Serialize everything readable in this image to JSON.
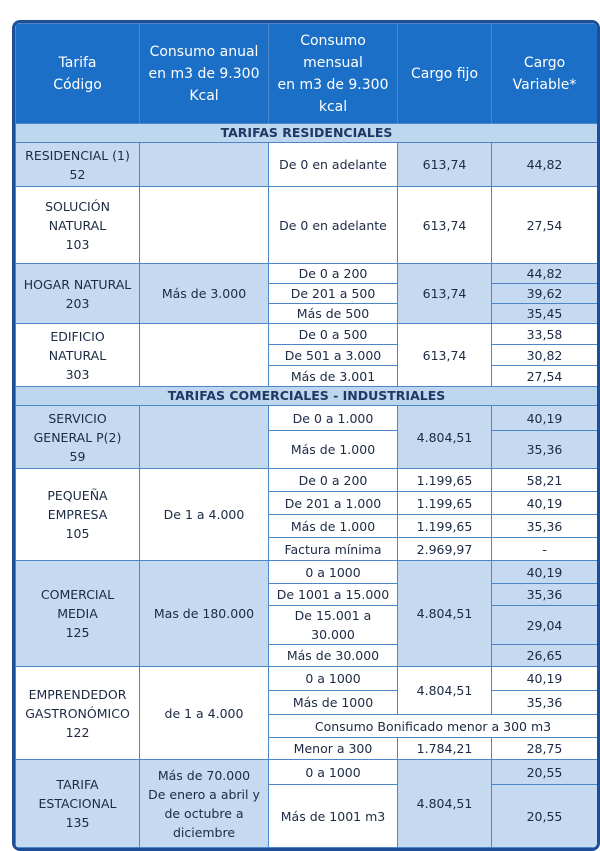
{
  "header": [
    [
      "Tarifa",
      "Código"
    ],
    [
      "Consumo anual",
      "en m3 de 9.300",
      "Kcal"
    ],
    [
      "Consumo",
      "mensual",
      "en m3 de 9.300",
      "kcal"
    ],
    [
      "Cargo fijo"
    ],
    [
      "Cargo",
      "Variable*"
    ]
  ],
  "sections": [
    {
      "title": "TARIFAS RESIDENCIALES",
      "groups": [
        {
          "tarifa": [
            "RESIDENCIAL (1)",
            "52"
          ],
          "consumo": [
            "De 0 en adelante"
          ],
          "cargo_fijo": [
            "613,74"
          ],
          "variable": [
            "44,82"
          ]
        },
        {
          "tarifa": [
            "SOLUCIÓN",
            "NATURAL",
            "103"
          ],
          "consumo": [
            "De 0 en adelante"
          ],
          "cargo_fijo": [
            "613,74"
          ],
          "variable": [
            "27,54"
          ]
        },
        {
          "tarifa": [
            "HOGAR NATURAL",
            "203"
          ],
          "anual": [
            "Más de 3.000"
          ],
          "consumo": [
            "De 0 a 200",
            "De 201 a 500",
            "Más de 500"
          ],
          "cargo_fijo": [
            "613,74"
          ],
          "variable": [
            "44,82",
            "39,62",
            "35,45"
          ]
        },
        {
          "tarifa": [
            "EDIFICIO",
            "NATURAL",
            "303"
          ],
          "consumo": [
            "De 0 a 500",
            "De 501 a 3.000",
            "Más de 3.001"
          ],
          "cargo_fijo": [
            "613,74"
          ],
          "variable": [
            "33,58",
            "30,82",
            "27,54"
          ]
        }
      ]
    },
    {
      "title": "TARIFAS COMERCIALES - INDUSTRIALES",
      "groups": [
        {
          "tarifa": [
            "SERVICIO",
            "GENERAL P(2)",
            "59"
          ],
          "consumo": [
            "De 0 a 1.000",
            "Más de 1.000"
          ],
          "cargo_fijo": [
            "4.804,51"
          ],
          "variable": [
            "40,19",
            "35,36"
          ]
        },
        {
          "tarifa": [
            "PEQUEÑA",
            "EMPRESA",
            "105"
          ],
          "anual": [
            "De 1 a 4.000"
          ],
          "consumo": [
            "De 0 a 200",
            "De 201 a 1.000",
            "Más de 1.000",
            "Factura mínima"
          ],
          "cargo_fijo": [
            "1.199,65",
            "1.199,65",
            "1.199,65",
            "2.969,97"
          ],
          "variable": [
            "58,21",
            "40,19",
            "35,36",
            "-"
          ]
        },
        {
          "tarifa": [
            "COMERCIAL",
            "MEDIA",
            "125"
          ],
          "anual": [
            "Mas de 180.000"
          ],
          "consumo": [
            "0 a 1000",
            "De 1001 a 15.000",
            "De 15.001 a 30.000",
            "Más de 30.000"
          ],
          "cargo_fijo": [
            "4.804,51"
          ],
          "variable": [
            "40,19",
            "35,36",
            "29,04",
            "26,65"
          ]
        },
        {
          "tarifa": [
            "EMPRENDEDOR",
            "GASTRONÓMICO",
            "122"
          ],
          "anual": [
            "de 1 a 4.000"
          ],
          "consumo": [
            "0 a 1000",
            "Más de 1000",
            "Menor a 300"
          ],
          "cargo_fijo": [
            "4.804,51",
            "1.784,21"
          ],
          "variable": [
            "40,19",
            "35,36",
            "28,75"
          ],
          "nota": "Consumo Bonificado menor a 300 m3"
        },
        {
          "tarifa": [
            "TARIFA",
            "ESTACIONAL",
            "135"
          ],
          "anual": [
            "Más de 70.000",
            "De enero a abril y de octubre a diciembre"
          ],
          "consumo": [
            "0 a 1000",
            "Más de 1001 m3"
          ],
          "cargo_fijo": [
            "4.804,51"
          ],
          "variable": [
            "20,55",
            "20,55"
          ]
        }
      ]
    }
  ]
}
